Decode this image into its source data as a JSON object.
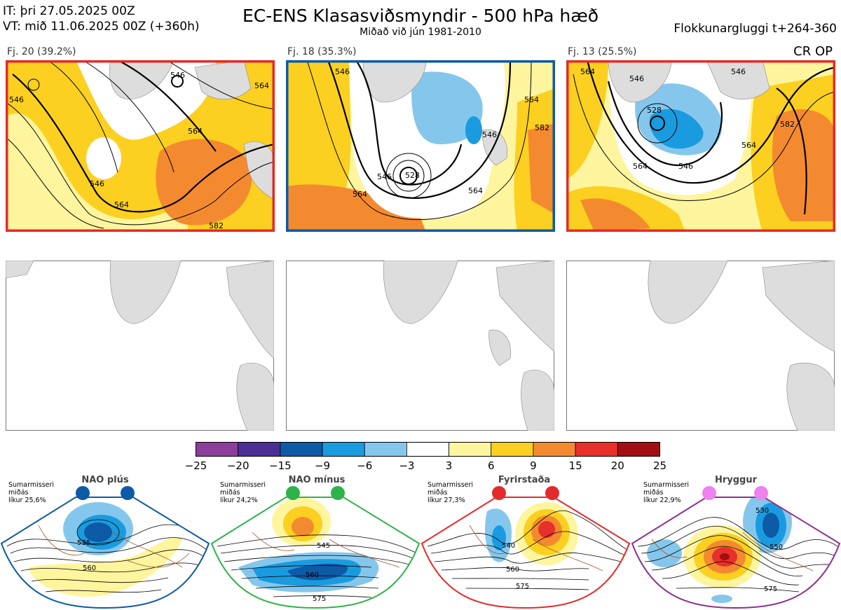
{
  "header": {
    "init_line": "IT: þri 27.05.2025 00Z",
    "valid_line": "VT: mið 11.06.2025 00Z  (+360h)",
    "title": "EC-ENS Klasasviðsmyndir - 500 hPa hæð",
    "subtitle": "Miðað við jún 1981-2010",
    "window": "Flokkunargluggi t+264-360",
    "cr_op": "CR OP"
  },
  "clusters": [
    {
      "label": "Fj. 20 (39.2%)",
      "frame_color": "#e32b2b",
      "contours": [
        "546",
        "564",
        "546",
        "564",
        "564",
        "546",
        "582"
      ]
    },
    {
      "label": "Fj. 18 (35.3%)",
      "frame_color": "#0d5aa7",
      "contours": [
        "546",
        "564",
        "546",
        "528",
        "564",
        "546",
        "582",
        "564"
      ]
    },
    {
      "label": "Fj. 13 (25.5%)",
      "frame_color": "#e32b2b",
      "contours": [
        "564",
        "546",
        "528",
        "546",
        "564",
        "546",
        "582",
        "564"
      ]
    }
  ],
  "colorbar": {
    "ticks": [
      "−25",
      "−20",
      "−15",
      "−9",
      "−6",
      "−3",
      "3",
      "6",
      "9",
      "15",
      "20",
      "25"
    ],
    "colors": [
      "#8b3f9a",
      "#4b2f94",
      "#0d5aa7",
      "#1a9be0",
      "#85c7ec",
      "#ffffff",
      "#fff59e",
      "#fbd020",
      "#f48a2f",
      "#e8302a",
      "#a20e12"
    ]
  },
  "regimes": [
    {
      "name": "NAO plús",
      "note": "Sumarmisseri\nmiðás\nlíkur 25,6%",
      "color": "#0d5aa7",
      "contours": [
        "535",
        "560"
      ]
    },
    {
      "name": "NAO mínus",
      "note": "Sumarmisseri\nmiðás\nlíkur 24,2%",
      "color": "#2eb34a",
      "contours": [
        "545",
        "560",
        "575"
      ]
    },
    {
      "name": "Fyrirstaða",
      "note": "Sumarmisseri\nmiðás\nlíkur 27,3%",
      "color": "#e32b2b",
      "contours": [
        "540",
        "560",
        "575"
      ]
    },
    {
      "name": "Hryggur",
      "note": "Sumarmisseri\nmiðás\nlíkur 22,9%",
      "color": "#8e2f8e",
      "contours": [
        "530",
        "550",
        "575"
      ]
    }
  ]
}
